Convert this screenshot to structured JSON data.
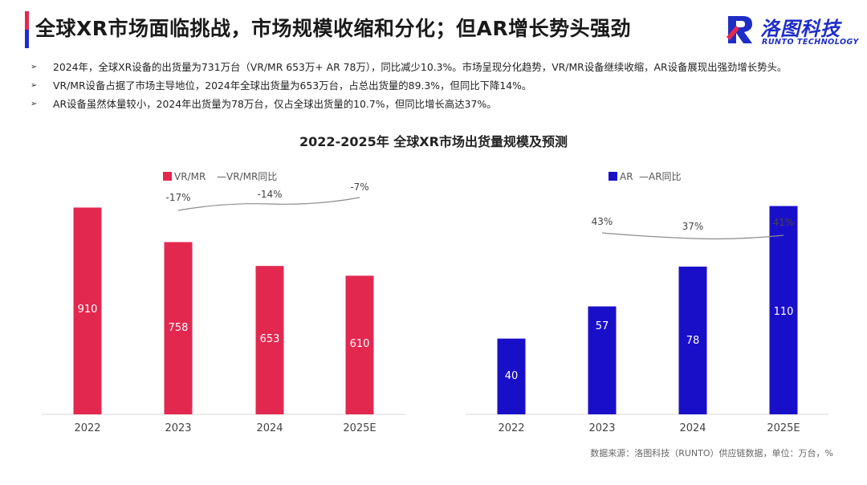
{
  "header": {
    "title": "全球XR市场面临挑战，市场规模收缩和分化；但AR增长势头强劲",
    "logo_cn": "洛图科技",
    "logo_en": "RUNTO TECHNOLOGY"
  },
  "bullets": [
    "2024年，全球XR设备的出货量为731万台（VR/MR 653万+ AR 78万），同比减少10.3%。市场呈现分化趋势，VR/MR设备继续收缩，AR设备展现出强劲增长势头。",
    "VR/MR设备占据了市场主导地位，2024年全球出货量为653万台，占总出货量的89.3%，但同比下降14%。",
    "AR设备虽然体量较小，2024年出货量为78万台，仅占全球出货量的10.7%，但同比增长高达37%。"
  ],
  "figure_title": "2022-2025年 全球XR市场出货量规模及预测",
  "source_note": "数据来源：洛图科技（RUNTO）供应链数据，单位：万台，%",
  "colors": {
    "vr_bar": "#e3284f",
    "ar_bar": "#1a0fc9",
    "yoy_line": "#8c8c8c",
    "accent_red": "#e3284f",
    "accent_blue": "#1f2dc7"
  },
  "chart_data": [
    {
      "type": "bar",
      "categories": [
        "2022",
        "2023",
        "2024",
        "2025E"
      ],
      "series": [
        {
          "name": "VR/MR",
          "values": [
            910,
            758,
            653,
            610
          ]
        },
        {
          "name": "VR/MR同比",
          "type": "line",
          "x": [
            "2023",
            "2024",
            "2025E"
          ],
          "values": [
            "-17%",
            "-14%",
            "-7%"
          ]
        }
      ],
      "legend_line_label": "—VR/MR同比",
      "ylim": [
        0,
        1000
      ],
      "legend_position": "top-center",
      "grid": false
    },
    {
      "type": "bar",
      "categories": [
        "2022",
        "2023",
        "2024",
        "2025E"
      ],
      "series": [
        {
          "name": "AR",
          "values": [
            40,
            57,
            78,
            110
          ]
        },
        {
          "name": "AR同比",
          "type": "line",
          "x": [
            "2023",
            "2024",
            "2025E"
          ],
          "values": [
            "43%",
            "37%",
            "41%"
          ]
        }
      ],
      "legend_line_label": "—AR同比",
      "ylim": [
        0,
        120
      ],
      "legend_position": "top-center",
      "grid": false
    }
  ]
}
